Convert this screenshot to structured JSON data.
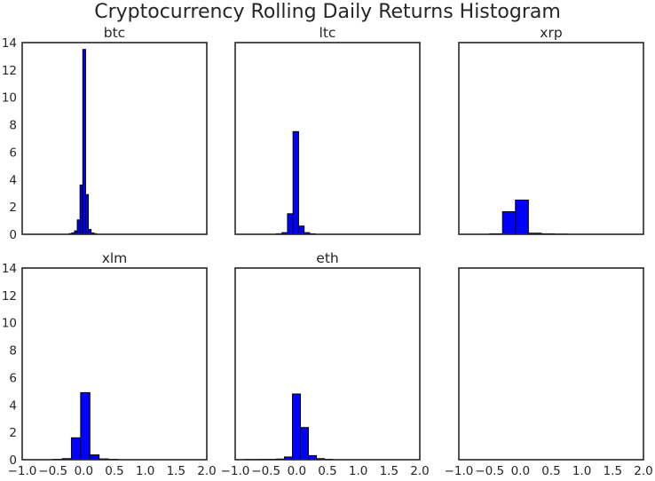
{
  "title": "Cryptocurrency Rolling Daily Returns Histogram",
  "colors": {
    "bar": "#0000ff",
    "edge": "#000000",
    "axis": "#262626"
  },
  "chart_data": [
    {
      "type": "histogram",
      "title": "btc",
      "xlim": [
        -1.0,
        2.0
      ],
      "ylim": [
        0,
        14
      ],
      "xticks": [
        "−1.0",
        "−0.5",
        "0.0",
        "0.5",
        "1.0",
        "1.5",
        "2.0"
      ],
      "yticks": [
        "0",
        "2",
        "4",
        "6",
        "8",
        "10",
        "12",
        "14"
      ],
      "show_xticklabels": false,
      "show_yticklabels": true,
      "bins": [
        {
          "x0": -0.24,
          "x1": -0.195,
          "y": 0.05
        },
        {
          "x0": -0.195,
          "x1": -0.15,
          "y": 0.1
        },
        {
          "x0": -0.15,
          "x1": -0.105,
          "y": 0.25
        },
        {
          "x0": -0.105,
          "x1": -0.06,
          "y": 1.05
        },
        {
          "x0": -0.06,
          "x1": -0.015,
          "y": 3.6
        },
        {
          "x0": -0.015,
          "x1": 0.03,
          "y": 13.5
        },
        {
          "x0": 0.03,
          "x1": 0.075,
          "y": 2.9
        },
        {
          "x0": 0.075,
          "x1": 0.12,
          "y": 0.35
        },
        {
          "x0": 0.12,
          "x1": 0.165,
          "y": 0.1
        },
        {
          "x0": 0.165,
          "x1": 0.21,
          "y": 0.05
        }
      ]
    },
    {
      "type": "histogram",
      "title": "ltc",
      "xlim": [
        -1.0,
        2.0
      ],
      "ylim": [
        0,
        14
      ],
      "xticks": [
        "−1.0",
        "−0.5",
        "0.0",
        "0.5",
        "1.0",
        "1.5",
        "2.0"
      ],
      "yticks": [
        "0",
        "2",
        "4",
        "6",
        "8",
        "10",
        "12",
        "14"
      ],
      "show_xticklabels": false,
      "show_yticklabels": false,
      "bins": [
        {
          "x0": -0.33,
          "x1": -0.24,
          "y": 0.04
        },
        {
          "x0": -0.24,
          "x1": -0.15,
          "y": 0.12
        },
        {
          "x0": -0.15,
          "x1": -0.06,
          "y": 1.5
        },
        {
          "x0": -0.06,
          "x1": 0.03,
          "y": 7.5
        },
        {
          "x0": 0.03,
          "x1": 0.12,
          "y": 0.6
        },
        {
          "x0": 0.12,
          "x1": 0.21,
          "y": 0.12
        },
        {
          "x0": 0.21,
          "x1": 0.3,
          "y": 0.04
        }
      ]
    },
    {
      "type": "histogram",
      "title": "xrp",
      "xlim": [
        -1.0,
        2.0
      ],
      "ylim": [
        0,
        14
      ],
      "xticks": [
        "−1.0",
        "−0.5",
        "0.0",
        "0.5",
        "1.0",
        "1.5",
        "2.0"
      ],
      "yticks": [
        "0",
        "2",
        "4",
        "6",
        "8",
        "10",
        "12",
        "14"
      ],
      "show_xticklabels": false,
      "show_yticklabels": false,
      "bins": [
        {
          "x0": -0.5,
          "x1": -0.29,
          "y": 0.04
        },
        {
          "x0": -0.29,
          "x1": -0.08,
          "y": 1.65
        },
        {
          "x0": -0.08,
          "x1": 0.13,
          "y": 2.5
        },
        {
          "x0": 0.13,
          "x1": 0.34,
          "y": 0.08
        },
        {
          "x0": 0.34,
          "x1": 0.55,
          "y": 0.04
        },
        {
          "x0": 0.55,
          "x1": 0.76,
          "y": 0.02
        }
      ]
    },
    {
      "type": "histogram",
      "title": "xlm",
      "xlim": [
        -1.0,
        2.0
      ],
      "ylim": [
        0,
        14
      ],
      "xticks": [
        "−1.0",
        "−0.5",
        "0.0",
        "0.5",
        "1.0",
        "1.5",
        "2.0"
      ],
      "yticks": [
        "0",
        "2",
        "4",
        "6",
        "8",
        "10",
        "12",
        "14"
      ],
      "show_xticklabels": true,
      "show_yticklabels": true,
      "bins": [
        {
          "x0": -0.5,
          "x1": -0.35,
          "y": 0.03
        },
        {
          "x0": -0.35,
          "x1": -0.2,
          "y": 0.08
        },
        {
          "x0": -0.2,
          "x1": -0.05,
          "y": 1.6
        },
        {
          "x0": -0.05,
          "x1": 0.1,
          "y": 4.9
        },
        {
          "x0": 0.1,
          "x1": 0.25,
          "y": 0.35
        },
        {
          "x0": 0.25,
          "x1": 0.4,
          "y": 0.06
        },
        {
          "x0": 0.4,
          "x1": 0.55,
          "y": 0.03
        }
      ]
    },
    {
      "type": "histogram",
      "title": "eth",
      "xlim": [
        -1.0,
        2.0
      ],
      "ylim": [
        0,
        14
      ],
      "xticks": [
        "−1.0",
        "−0.5",
        "0.0",
        "0.5",
        "1.0",
        "1.5",
        "2.0"
      ],
      "yticks": [
        "0",
        "2",
        "4",
        "6",
        "8",
        "10",
        "12",
        "14"
      ],
      "show_xticklabels": true,
      "show_yticklabels": false,
      "bins": [
        {
          "x0": -0.85,
          "x1": -0.72,
          "y": 0.02
        },
        {
          "x0": -0.72,
          "x1": -0.59,
          "y": 0.02
        },
        {
          "x0": -0.59,
          "x1": -0.46,
          "y": 0.03
        },
        {
          "x0": -0.46,
          "x1": -0.33,
          "y": 0.03
        },
        {
          "x0": -0.33,
          "x1": -0.2,
          "y": 0.05
        },
        {
          "x0": -0.2,
          "x1": -0.07,
          "y": 0.2
        },
        {
          "x0": -0.07,
          "x1": 0.06,
          "y": 4.8
        },
        {
          "x0": 0.06,
          "x1": 0.19,
          "y": 2.35
        },
        {
          "x0": 0.19,
          "x1": 0.32,
          "y": 0.3
        },
        {
          "x0": 0.32,
          "x1": 0.45,
          "y": 0.08
        },
        {
          "x0": 0.45,
          "x1": 0.58,
          "y": 0.03
        }
      ]
    },
    {
      "type": "histogram",
      "title": "",
      "xlim": [
        -1.0,
        2.0
      ],
      "ylim": [
        0,
        14
      ],
      "xticks": [
        "−1.0",
        "−0.5",
        "0.0",
        "0.5",
        "1.0",
        "1.5",
        "2.0"
      ],
      "yticks": [
        "0",
        "2",
        "4",
        "6",
        "8",
        "10",
        "12",
        "14"
      ],
      "show_xticklabels": true,
      "show_yticklabels": false,
      "bins": []
    }
  ]
}
